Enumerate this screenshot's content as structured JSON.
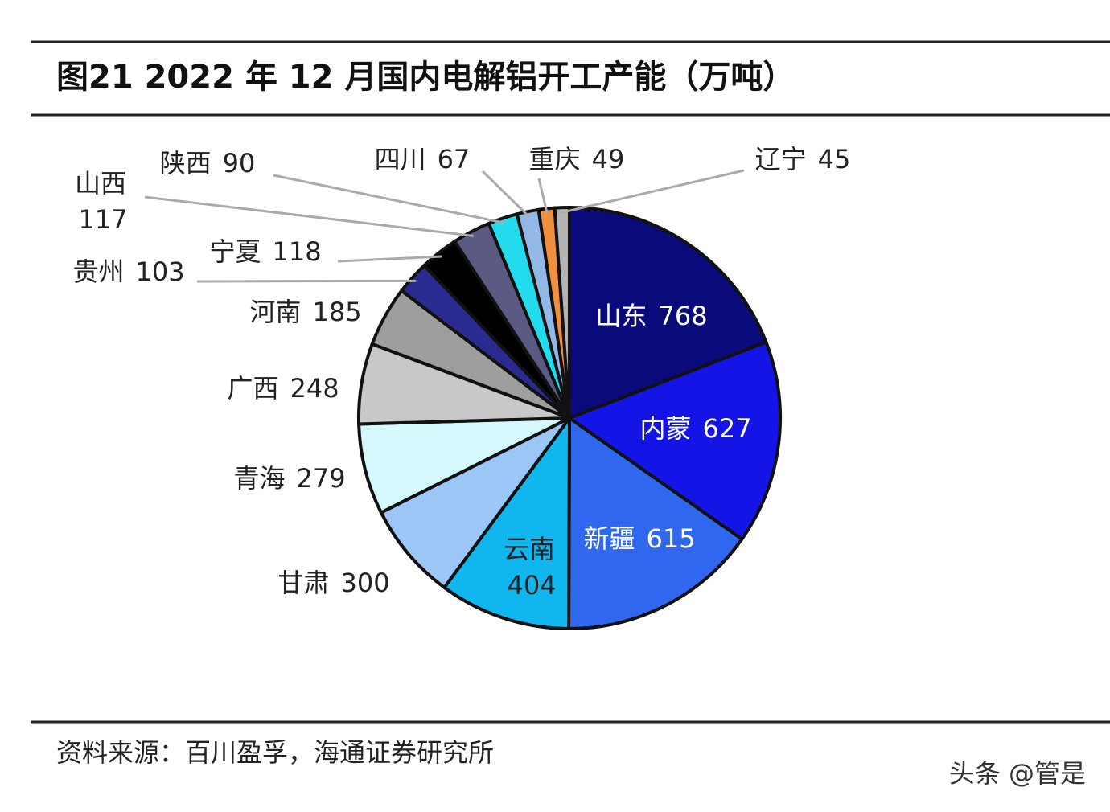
{
  "chart_data": {
    "type": "pie",
    "title": "图21 2022 年 12 月国内电解铝开工产能（万吨）",
    "categories": [
      "山东",
      "内蒙",
      "新疆",
      "云南",
      "甘肃",
      "青海",
      "广西",
      "河南",
      "贵州",
      "宁夏",
      "山西",
      "陕西",
      "四川",
      "重庆",
      "辽宁"
    ],
    "values": [
      768,
      627,
      615,
      404,
      300,
      279,
      248,
      185,
      103,
      118,
      117,
      90,
      67,
      49,
      45
    ],
    "colors": [
      "#0a0a7a",
      "#1414e6",
      "#2f68ee",
      "#10b6ee",
      "#9cc6f6",
      "#d4f8fc",
      "#c8c8c8",
      "#9e9e9e",
      "#2a2a90",
      "#000000",
      "#5a5a82",
      "#22dcee",
      "#92b8e8",
      "#f0903e",
      "#b4b4b4"
    ],
    "source": "资料来源：百川盈孚，海通证券研究所",
    "watermark": "头条 @管是"
  }
}
